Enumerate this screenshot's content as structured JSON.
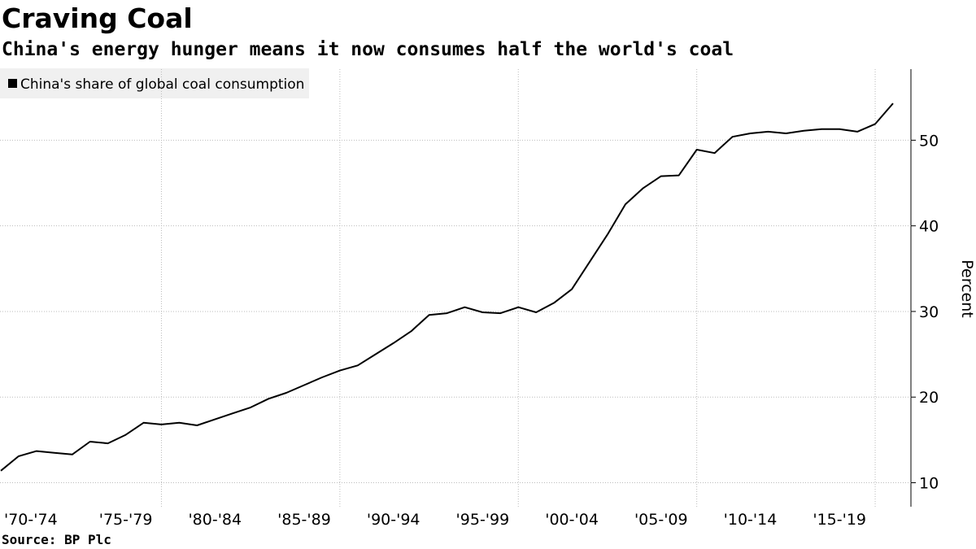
{
  "chart_data": {
    "type": "line",
    "title": "Craving Coal",
    "subtitle": "China's energy hunger means it now consumes half the world's coal",
    "source": "Source: BP Plc",
    "y_axis_label": "Percent",
    "categories": [
      "'70-'74",
      null,
      null,
      null,
      null,
      "'75-'79",
      null,
      null,
      null,
      null,
      "'80-'84",
      null,
      null,
      null,
      null,
      "'85-'89",
      null,
      null,
      null,
      null,
      "'90-'94",
      null,
      null,
      null,
      null,
      "'95-'99",
      null,
      null,
      null,
      null,
      "'00-'04",
      null,
      null,
      null,
      null,
      "'05-'09",
      null,
      null,
      null,
      null,
      "'10-'14",
      null,
      null,
      null,
      null,
      "'15-'19",
      null,
      null,
      null,
      null,
      null
    ],
    "series": [
      {
        "name": "China's share of global coal consumption",
        "color": "#000000",
        "values": [
          11.4,
          13.1,
          13.7,
          13.5,
          13.3,
          14.8,
          14.6,
          15.6,
          17.0,
          16.8,
          17.0,
          16.7,
          17.4,
          18.1,
          18.8,
          19.8,
          20.5,
          21.4,
          22.3,
          23.1,
          23.7,
          25.0,
          26.3,
          27.7,
          29.6,
          29.8,
          30.5,
          29.9,
          29.8,
          30.5,
          29.9,
          31.0,
          32.6,
          35.8,
          39.0,
          42.5,
          44.4,
          45.8,
          45.9,
          48.9,
          48.5,
          50.4,
          50.8,
          51.0,
          50.8,
          51.1,
          51.3,
          51.3,
          51.0,
          51.9,
          54.3
        ]
      }
    ],
    "ylim": [
      7.2,
      58.3
    ],
    "yticks": [
      10,
      20,
      30,
      40,
      50
    ],
    "grid": true,
    "legend": "top-left"
  }
}
